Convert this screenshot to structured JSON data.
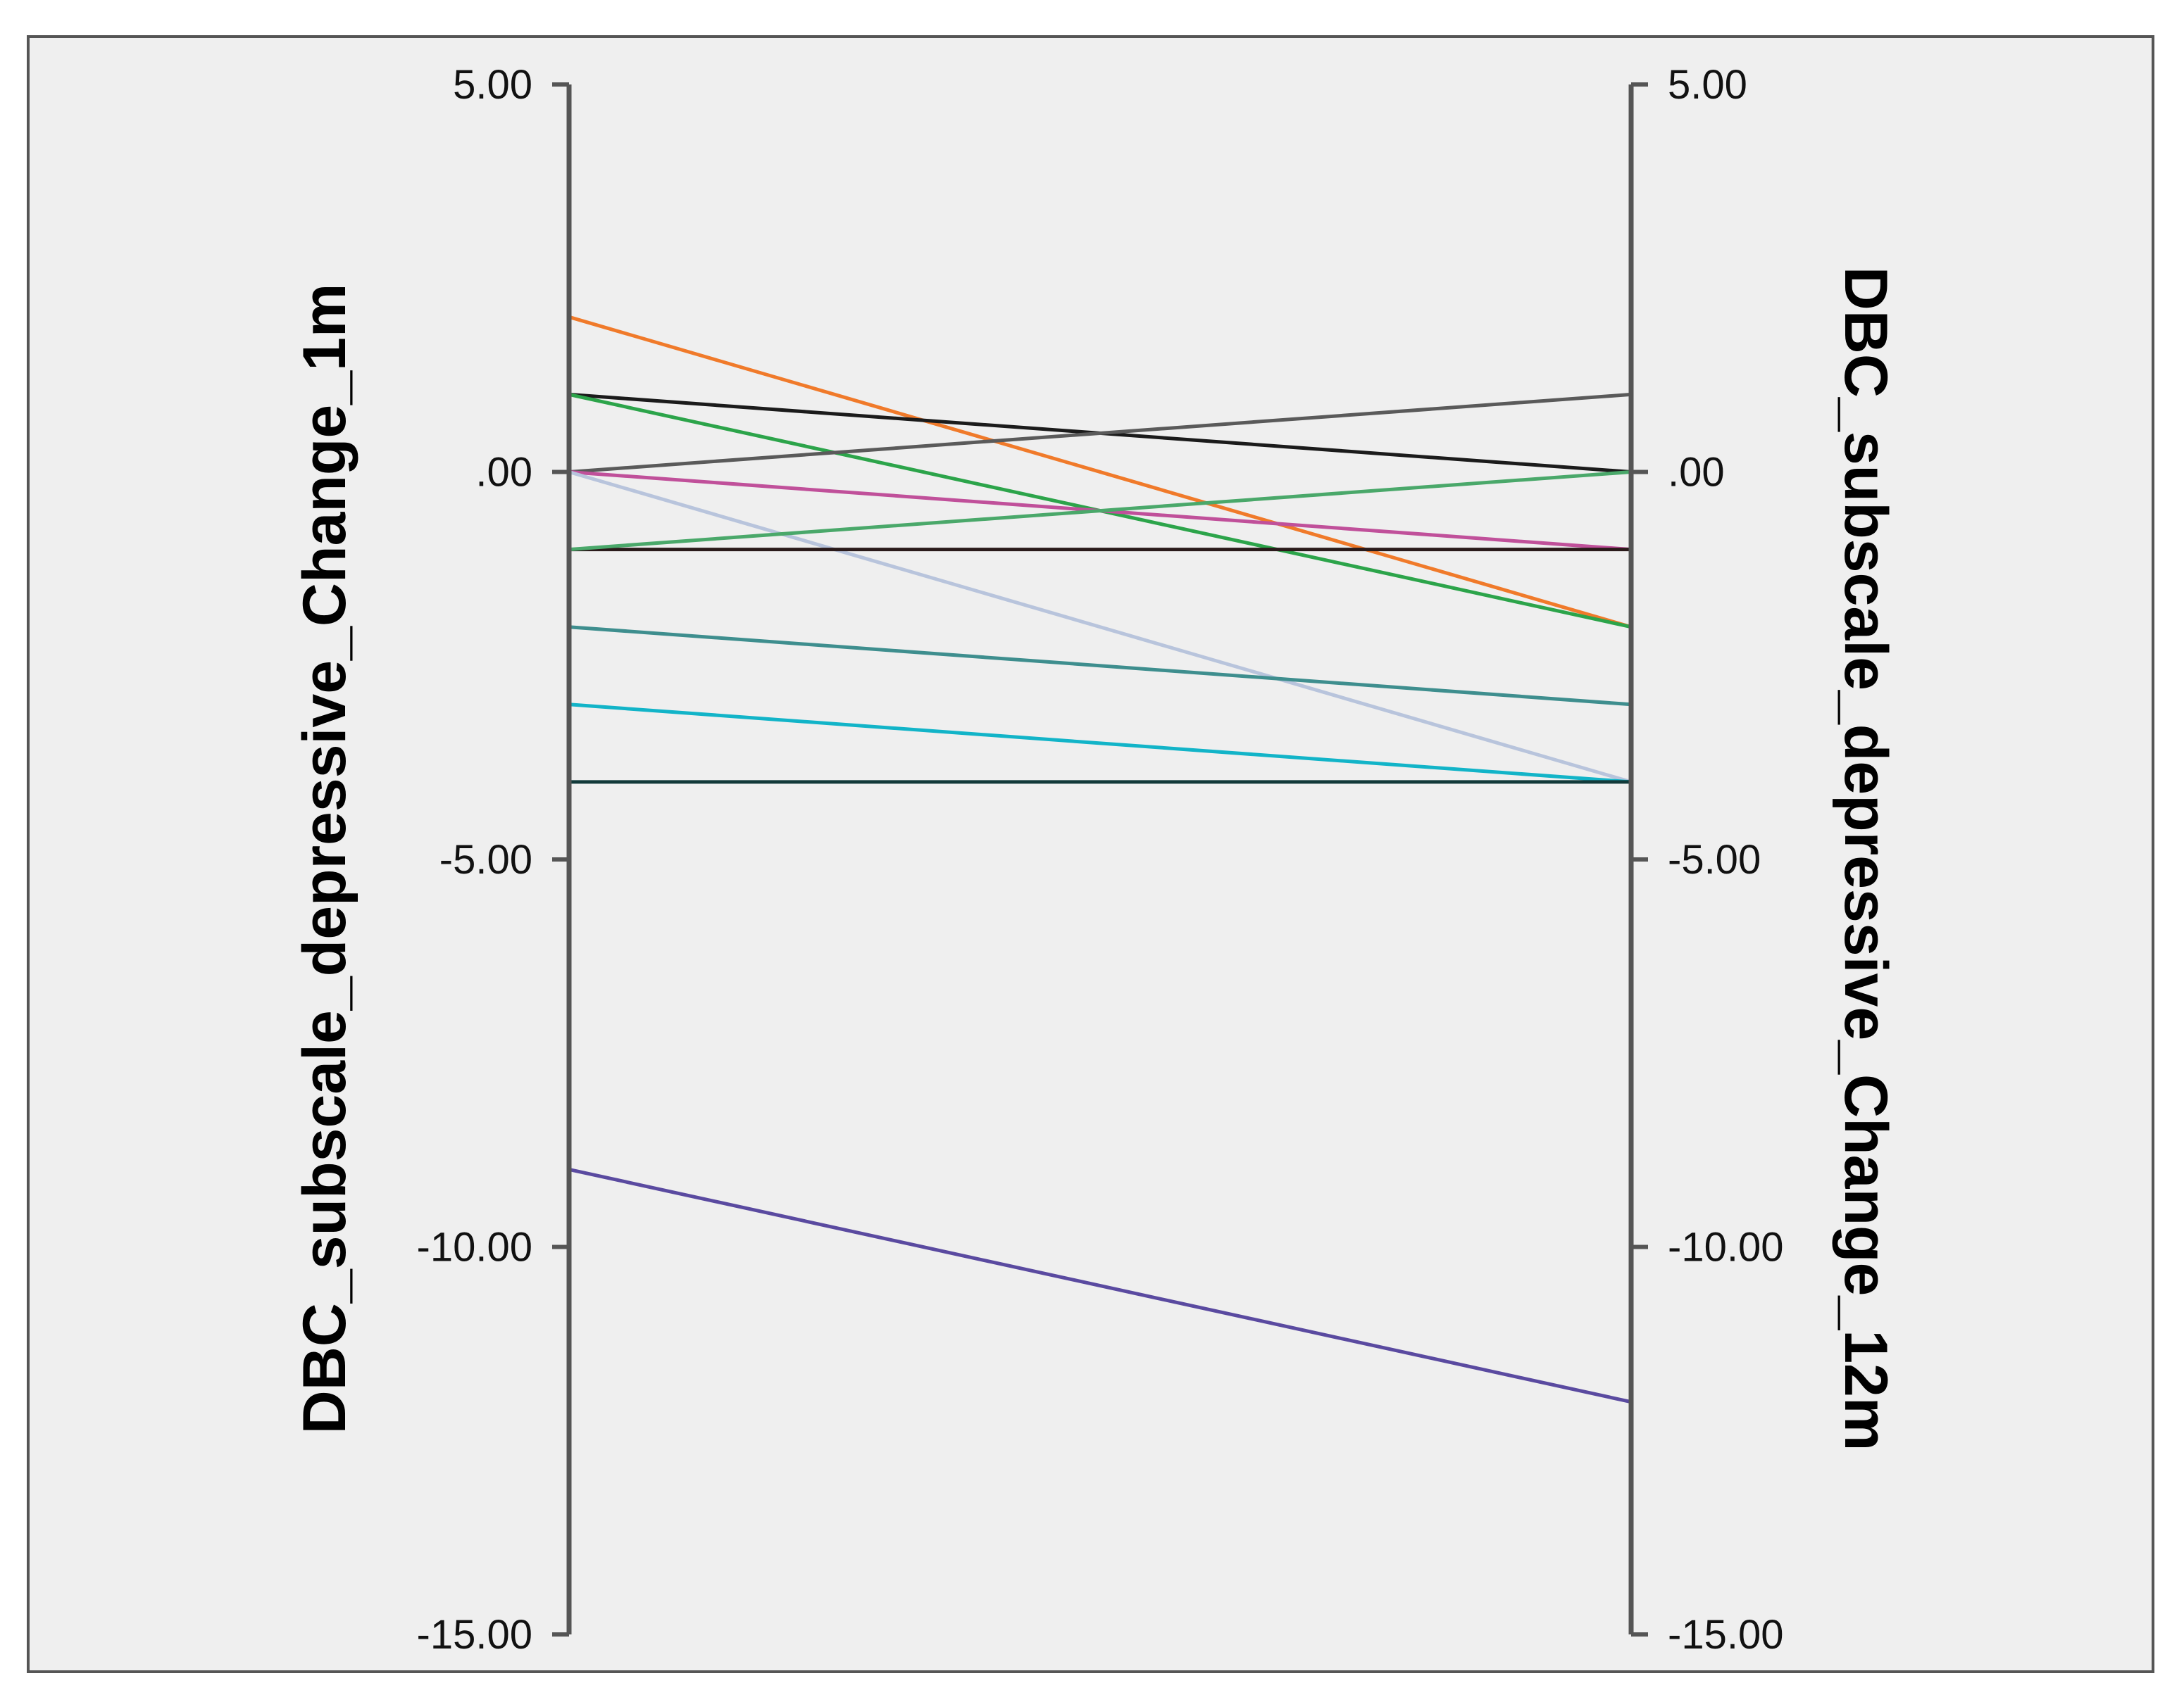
{
  "chart_data": {
    "type": "line",
    "chart_style": "parallel-coordinates",
    "axes": [
      {
        "label": "DBC_subscale_depressive_Change_1m",
        "ylim": [
          -15,
          5
        ],
        "ticks": [
          5,
          0,
          -5,
          -10,
          -15
        ],
        "tick_labels": [
          "5.00",
          ".00",
          "-5.00",
          "-10.00",
          "-15.00"
        ]
      },
      {
        "label": "DBC_subscale_depressive_Change_12m",
        "ylim": [
          -15,
          5
        ],
        "ticks": [
          5,
          0,
          -5,
          -10,
          -15
        ],
        "tick_labels": [
          "5.00",
          ".00",
          "-5.00",
          "-10.00",
          "-15.00"
        ]
      }
    ],
    "series": [
      {
        "values": [
          2,
          -2
        ],
        "color": "#f07a2a"
      },
      {
        "values": [
          1,
          0
        ],
        "color": "#1b1b1b"
      },
      {
        "values": [
          1,
          -2
        ],
        "color": "#2ca44a"
      },
      {
        "values": [
          0,
          1
        ],
        "color": "#5a5a5a"
      },
      {
        "values": [
          0,
          -1
        ],
        "color": "#c0509a"
      },
      {
        "values": [
          0,
          -4
        ],
        "color": "#b8c4dc"
      },
      {
        "values": [
          -1,
          -1
        ],
        "color": "#2a1a1a"
      },
      {
        "values": [
          -1,
          0
        ],
        "color": "#4aa86a"
      },
      {
        "values": [
          -2,
          -3
        ],
        "color": "#3e8e8e"
      },
      {
        "values": [
          -3,
          -4
        ],
        "color": "#12b4c8"
      },
      {
        "values": [
          -4,
          -4
        ],
        "color": "#123a3a"
      },
      {
        "values": [
          -9,
          -12
        ],
        "color": "#5a4aa0"
      }
    ],
    "grid": false,
    "legend": "none"
  }
}
